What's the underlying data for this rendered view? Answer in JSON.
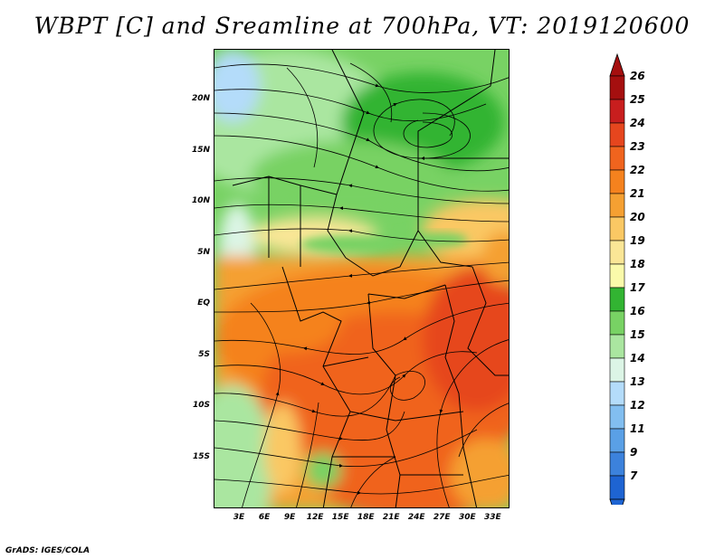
{
  "title": "WBPT [C] and Sreamline at 700hPa, VT: 2019120600",
  "footer": "GrADS: IGES/COLA",
  "map": {
    "lon_range": [
      0,
      35
    ],
    "lat_range": [
      -20,
      25
    ],
    "lat_ticks": [
      {
        "value": 20,
        "label": "20N"
      },
      {
        "value": 15,
        "label": "15N"
      },
      {
        "value": 10,
        "label": "10N"
      },
      {
        "value": 5,
        "label": "5N"
      },
      {
        "value": 0,
        "label": "EQ"
      },
      {
        "value": -5,
        "label": "5S"
      },
      {
        "value": -10,
        "label": "10S"
      },
      {
        "value": -15,
        "label": "15S"
      }
    ],
    "lon_ticks": [
      {
        "value": 3,
        "label": "3E"
      },
      {
        "value": 6,
        "label": "6E"
      },
      {
        "value": 9,
        "label": "9E"
      },
      {
        "value": 12,
        "label": "12E"
      },
      {
        "value": 15,
        "label": "15E"
      },
      {
        "value": 18,
        "label": "18E"
      },
      {
        "value": 21,
        "label": "21E"
      },
      {
        "value": 24,
        "label": "24E"
      },
      {
        "value": 27,
        "label": "27E"
      },
      {
        "value": 30,
        "label": "30E"
      },
      {
        "value": 33,
        "label": "33E"
      }
    ]
  },
  "colorbar": {
    "levels": [
      {
        "label": "26",
        "color": "#a50f0f"
      },
      {
        "label": "25",
        "color": "#c81e1e"
      },
      {
        "label": "24",
        "color": "#e6461e"
      },
      {
        "label": "23",
        "color": "#f0641e"
      },
      {
        "label": "22",
        "color": "#f5821e"
      },
      {
        "label": "21",
        "color": "#f5a032"
      },
      {
        "label": "20",
        "color": "#fac864"
      },
      {
        "label": "19",
        "color": "#fae696"
      },
      {
        "label": "18",
        "color": "#fafaaa"
      },
      {
        "label": "17",
        "color": "#32b432"
      },
      {
        "label": "16",
        "color": "#78d264"
      },
      {
        "label": "15",
        "color": "#aae6a0"
      },
      {
        "label": "14",
        "color": "#dcf5e6"
      },
      {
        "label": "13",
        "color": "#b4dcfa"
      },
      {
        "label": "12",
        "color": "#82bef0"
      },
      {
        "label": "11",
        "color": "#5aa0e6"
      },
      {
        "label": "9",
        "color": "#3c82dc"
      },
      {
        "label": "7",
        "color": "#1e64d2"
      }
    ],
    "top_arrow_color": "#a50f0f",
    "bottom_arrow_color": "#1e64d2"
  }
}
